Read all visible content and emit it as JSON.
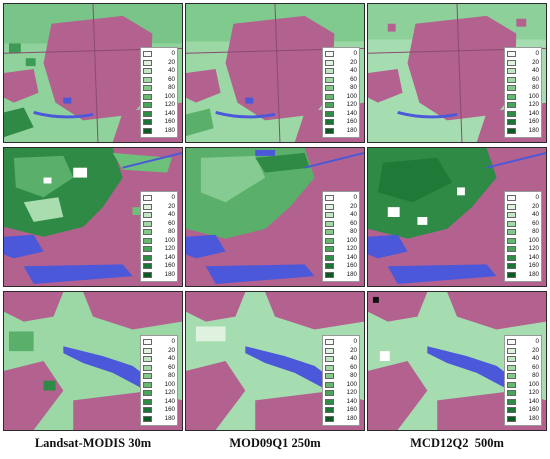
{
  "captions": [
    "Landsat-MODIS 30m",
    "MOD09Q1 250m",
    "MCD12Q2  500m"
  ],
  "legend": {
    "labels": [
      "0",
      "20",
      "40",
      "60",
      "80",
      "100",
      "120",
      "140",
      "160",
      "180"
    ],
    "colors": [
      "#f7fbf7",
      "#dff2df",
      "#c2e6c4",
      "#a3d8a6",
      "#84c98a",
      "#66b86f",
      "#4aa45a",
      "#308d46",
      "#1a7433",
      "#0a5a22"
    ]
  },
  "palette": {
    "urban": "#b3618f",
    "urban_light": "#c07aa2",
    "water": "#4b58d9",
    "water_light": "#7a8cf0",
    "green_light": "#a9ddb0",
    "green_mid": "#6cc07a",
    "green_dark": "#2f8a46",
    "road": "#8a4a70"
  },
  "panels": [
    {
      "row": 1,
      "col": 1,
      "theme": "urban-center"
    },
    {
      "row": 1,
      "col": 2,
      "theme": "urban-center"
    },
    {
      "row": 1,
      "col": 3,
      "theme": "urban-center"
    },
    {
      "row": 2,
      "col": 1,
      "theme": "forest-west"
    },
    {
      "row": 2,
      "col": 2,
      "theme": "forest-west"
    },
    {
      "row": 2,
      "col": 3,
      "theme": "forest-west"
    },
    {
      "row": 3,
      "col": 1,
      "theme": "river-reservoir"
    },
    {
      "row": 3,
      "col": 2,
      "theme": "river-reservoir"
    },
    {
      "row": 3,
      "col": 3,
      "theme": "river-reservoir"
    }
  ]
}
